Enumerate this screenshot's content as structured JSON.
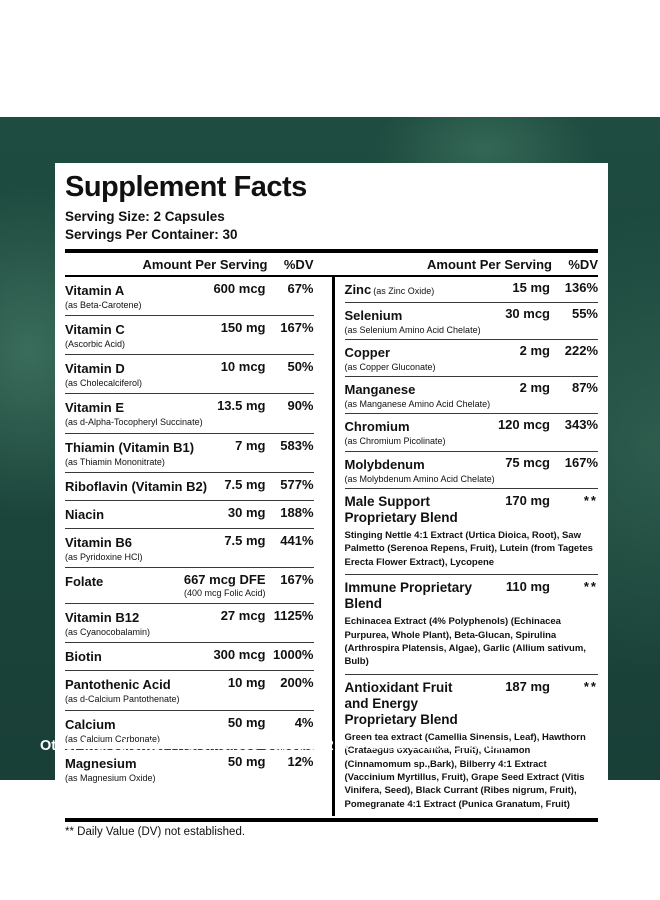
{
  "colors": {
    "background_green": "#1e4c40",
    "panel_bg": "#ffffff",
    "text": "#111111",
    "footer_text": "#ffffff"
  },
  "panel": {
    "title": "Supplement Facts",
    "serving_size": "Serving Size: 2 Capsules",
    "servings_per_container": "Servings Per Container: 30",
    "amount_header": "Amount Per Serving",
    "dv_header": "%DV",
    "left_rows": [
      {
        "name": "Vitamin A",
        "sub": "(as Beta-Carotene)",
        "amount": "600 mcg",
        "dv": "67%"
      },
      {
        "name": "Vitamin C",
        "sub": "(Ascorbic Acid)",
        "amount": "150 mg",
        "dv": "167%"
      },
      {
        "name": "Vitamin D",
        "sub": "(as Cholecalciferol)",
        "amount": "10 mcg",
        "dv": "50%"
      },
      {
        "name": "Vitamin E",
        "sub": "(as d-Alpha-Tocopheryl Succinate)",
        "amount": "13.5 mg",
        "dv": "90%"
      },
      {
        "name": "Thiamin (Vitamin B1)",
        "sub": "(as Thiamin Mononitrate)",
        "amount": "7 mg",
        "dv": "583%"
      },
      {
        "name": "Riboflavin (Vitamin B2)",
        "amount": "7.5 mg",
        "dv": "577%"
      },
      {
        "name": "Niacin",
        "amount": "30 mg",
        "dv": "188%"
      },
      {
        "name": "Vitamin B6",
        "sub": "(as Pyridoxine HCl)",
        "amount": "7.5 mg",
        "dv": "441%"
      },
      {
        "name": "Folate",
        "amount": "667 mcg DFE",
        "amount_sub": "(400 mcg Folic Acid)",
        "dv": "167%"
      },
      {
        "name": "Vitamin B12",
        "sub": "(as Cyanocobalamin)",
        "amount": "27 mcg",
        "dv": "1125%"
      },
      {
        "name": "Biotin",
        "amount": "300 mcg",
        "dv": "1000%"
      },
      {
        "name": "Pantothenic Acid",
        "sub": "(as d-Calcium Pantothenate)",
        "amount": "10 mg",
        "dv": "200%"
      },
      {
        "name": "Calcium",
        "sub": "(as Calcium Carbonate)",
        "amount": "50 mg",
        "dv": "4%"
      },
      {
        "name": "Magnesium",
        "sub": "(as Magnesium Oxide)",
        "amount": "50 mg",
        "dv": "12%"
      }
    ],
    "right_rows": [
      {
        "name": "Zinc",
        "sub": "(as Zinc Oxide)",
        "amount": "15 mg",
        "dv": "136%"
      },
      {
        "name": "Selenium",
        "sub": "(as Selenium Amino Acid Chelate)",
        "amount": "30 mcg",
        "dv": "55%"
      },
      {
        "name": "Copper",
        "sub": "(as Copper Gluconate)",
        "amount": "2 mg",
        "dv": "222%"
      },
      {
        "name": "Manganese",
        "sub": "(as Manganese Amino Acid Chelate)",
        "amount": "2 mg",
        "dv": "87%"
      },
      {
        "name": "Chromium",
        "sub": "(as Chromium Picolinate)",
        "amount": "120 mcg",
        "dv": "343%"
      },
      {
        "name": "Molybdenum",
        "sub": "(as Molybdenum Amino Acid Chelate)",
        "amount": "75 mcg",
        "dv": "167%"
      }
    ],
    "blends": [
      {
        "name": "Male Support Proprietary Blend",
        "amount": "170 mg",
        "dv": "**",
        "desc": "Stinging Nettle 4:1 Extract (Urtica Dioica, Root), Saw Palmetto (Serenoa Repens, Fruit), Lutein (from Tagetes Erecta Flower Extract), Lycopene"
      },
      {
        "name": "Immune Proprietary Blend",
        "amount": "110 mg",
        "dv": "**",
        "desc": "Echinacea Extract (4% Polyphenols) (Echinacea Purpurea, Whole Plant), Beta-Glucan, Spirulina (Arthrospira Platensis, Algae), Garlic (Allium sativum, Bulb)"
      },
      {
        "name": "Antioxidant Fruit and Energy Proprietary Blend",
        "amount": "187 mg",
        "dv": "**",
        "desc": "Green tea extract (Camellia Sinensis, Leaf), Hawthorn (Crataegus oxyacantha, Fruit), Cinnamon (Cinnamomum sp.,Bark), Bilberry 4:1 Extract (Vaccinium Myrtillus, Fruit), Grape Seed Extract (Vitis Vinifera, Seed), Black Currant (Ribes nigrum, Fruit), Pomegranate 4:1 Extract (Punica Granatum, Fruit)"
      }
    ],
    "footnote": "** Daily Value (DV) not established."
  },
  "other_ingredients": {
    "label": "Other Ingredients:",
    "text": " Hypromellose Capsule, Rice Flour, L-Leucine, Silica."
  }
}
